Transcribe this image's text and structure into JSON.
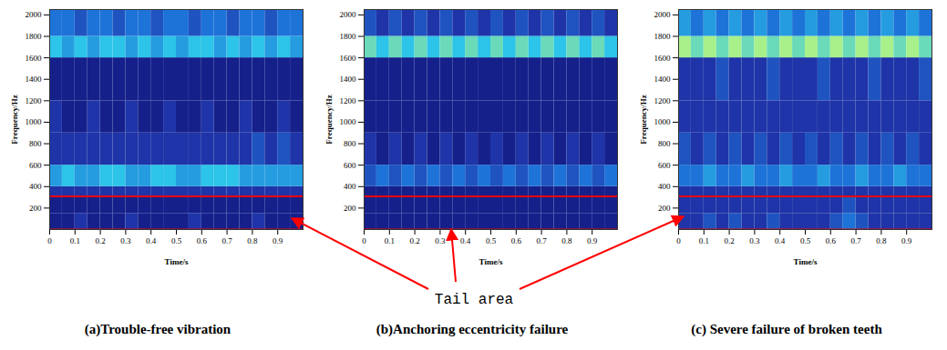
{
  "chart_data": [
    {
      "type": "heatmap",
      "title": "(a)Trouble-free vibration",
      "x_label": "Time/s",
      "y_label": "Frequency/Hz",
      "xlim": [
        0,
        1
      ],
      "ylim": [
        0,
        2050
      ],
      "xticks": [
        0,
        0.1,
        0.2,
        0.3,
        0.4,
        0.5,
        0.6,
        0.7,
        0.8,
        0.9
      ],
      "yticks": [
        200,
        400,
        600,
        800,
        1000,
        1200,
        1400,
        1600,
        1800,
        2000
      ],
      "time_edges": [
        0,
        0.05,
        0.1,
        0.15,
        0.2,
        0.25,
        0.3,
        0.35,
        0.4,
        0.45,
        0.5,
        0.55,
        0.6,
        0.65,
        0.7,
        0.75,
        0.8,
        0.85,
        0.9,
        0.95,
        1
      ],
      "frequency_edges": [
        0,
        150,
        300,
        400,
        600,
        900,
        1200,
        1600,
        1800,
        2050
      ],
      "intensity_range": [
        0,
        10
      ],
      "tail_area": [
        0,
        310
      ],
      "intensity": [
        [
          1,
          1,
          2,
          1,
          1,
          1,
          2,
          1,
          1,
          1,
          1,
          2,
          1,
          1,
          1,
          1,
          2,
          1,
          1,
          1
        ],
        [
          1,
          1,
          1,
          1,
          1,
          1,
          1,
          1,
          1,
          1,
          1,
          1,
          1,
          1,
          1,
          1,
          1,
          1,
          1,
          1
        ],
        [
          2,
          2,
          2,
          2,
          2,
          2,
          2,
          2,
          2,
          2,
          2,
          2,
          2,
          2,
          2,
          2,
          2,
          2,
          2,
          2
        ],
        [
          5,
          6,
          5,
          5,
          6,
          6,
          5,
          5,
          6,
          6,
          5,
          5,
          6,
          6,
          6,
          5,
          5,
          5,
          5,
          5
        ],
        [
          2,
          2,
          2,
          2,
          2,
          2,
          2,
          2,
          2,
          2,
          2,
          2,
          2,
          2,
          2,
          2,
          3,
          2,
          3,
          2
        ],
        [
          2,
          1,
          1,
          2,
          1,
          1,
          2,
          1,
          1,
          2,
          1,
          1,
          2,
          1,
          1,
          2,
          1,
          1,
          2,
          1
        ],
        [
          1,
          1,
          1,
          1,
          1,
          1,
          1,
          1,
          1,
          1,
          1,
          1,
          1,
          1,
          1,
          1,
          1,
          1,
          1,
          1
        ],
        [
          6,
          5,
          6,
          5,
          6,
          6,
          5,
          6,
          5,
          6,
          5,
          6,
          6,
          5,
          6,
          5,
          6,
          5,
          6,
          5
        ],
        [
          4,
          4,
          3,
          4,
          4,
          3,
          4,
          4,
          3,
          4,
          4,
          3,
          4,
          4,
          3,
          4,
          4,
          3,
          4,
          4
        ]
      ]
    },
    {
      "type": "heatmap",
      "title": "(b)Anchoring eccentricity failure",
      "x_label": "Time/s",
      "y_label": "Frequency/Hz",
      "xlim": [
        0,
        1
      ],
      "ylim": [
        0,
        2050
      ],
      "xticks": [
        0,
        0.1,
        0.2,
        0.3,
        0.4,
        0.5,
        0.6,
        0.7,
        0.8,
        0.9
      ],
      "yticks": [
        200,
        400,
        600,
        800,
        1000,
        1200,
        1400,
        1600,
        1800,
        2000
      ],
      "time_edges": [
        0,
        0.05,
        0.1,
        0.15,
        0.2,
        0.25,
        0.3,
        0.35,
        0.4,
        0.45,
        0.5,
        0.55,
        0.6,
        0.65,
        0.7,
        0.75,
        0.8,
        0.85,
        0.9,
        0.95,
        1
      ],
      "frequency_edges": [
        0,
        150,
        300,
        400,
        600,
        900,
        1200,
        1600,
        1800,
        2050
      ],
      "intensity_range": [
        0,
        10
      ],
      "tail_area": [
        0,
        310
      ],
      "intensity": [
        [
          1,
          1,
          1,
          1,
          1,
          1,
          1,
          1,
          1,
          1,
          1,
          1,
          1,
          1,
          1,
          1,
          1,
          1,
          1,
          1
        ],
        [
          1,
          1,
          1,
          1,
          1,
          1,
          1,
          1,
          1,
          1,
          1,
          1,
          1,
          1,
          1,
          1,
          1,
          1,
          1,
          1
        ],
        [
          1,
          1,
          1,
          1,
          1,
          1,
          1,
          1,
          1,
          1,
          1,
          1,
          1,
          1,
          1,
          1,
          1,
          1,
          1,
          1
        ],
        [
          3,
          4,
          3,
          4,
          3,
          4,
          3,
          4,
          3,
          4,
          3,
          4,
          3,
          4,
          3,
          4,
          3,
          4,
          3,
          4
        ],
        [
          2,
          1,
          2,
          1,
          2,
          1,
          2,
          1,
          2,
          1,
          2,
          1,
          2,
          1,
          2,
          1,
          2,
          1,
          2,
          1
        ],
        [
          1,
          1,
          1,
          1,
          1,
          1,
          1,
          1,
          1,
          1,
          1,
          1,
          1,
          1,
          1,
          1,
          1,
          1,
          1,
          1
        ],
        [
          1,
          1,
          1,
          1,
          1,
          1,
          1,
          1,
          1,
          1,
          1,
          1,
          1,
          1,
          1,
          1,
          1,
          1,
          1,
          1
        ],
        [
          7,
          6,
          7,
          6,
          7,
          6,
          7,
          6,
          7,
          6,
          7,
          6,
          7,
          6,
          7,
          6,
          7,
          6,
          7,
          6
        ],
        [
          3,
          2,
          3,
          2,
          3,
          2,
          3,
          2,
          3,
          2,
          3,
          2,
          3,
          2,
          3,
          2,
          3,
          2,
          3,
          2
        ]
      ]
    },
    {
      "type": "heatmap",
      "title": "(c) Severe failure of broken teeth",
      "x_label": "Time/s",
      "y_label": "Frequency/Hz",
      "xlim": [
        0,
        1
      ],
      "ylim": [
        0,
        2050
      ],
      "xticks": [
        0,
        0.1,
        0.2,
        0.3,
        0.4,
        0.5,
        0.6,
        0.7,
        0.8,
        0.9
      ],
      "yticks": [
        200,
        400,
        600,
        800,
        1000,
        1200,
        1400,
        1600,
        1800,
        2000
      ],
      "time_edges": [
        0,
        0.05,
        0.1,
        0.15,
        0.2,
        0.25,
        0.3,
        0.35,
        0.4,
        0.45,
        0.5,
        0.55,
        0.6,
        0.65,
        0.7,
        0.75,
        0.8,
        0.85,
        0.9,
        0.95,
        1
      ],
      "frequency_edges": [
        0,
        150,
        300,
        400,
        600,
        900,
        1200,
        1600,
        1800,
        2050
      ],
      "intensity_range": [
        0,
        10
      ],
      "tail_area": [
        0,
        310
      ],
      "intensity": [
        [
          2,
          2,
          3,
          2,
          3,
          2,
          2,
          3,
          2,
          2,
          2,
          2,
          3,
          4,
          3,
          2,
          2,
          2,
          2,
          2
        ],
        [
          2,
          2,
          2,
          2,
          2,
          2,
          2,
          2,
          2,
          2,
          2,
          2,
          2,
          3,
          2,
          2,
          2,
          2,
          2,
          2
        ],
        [
          2,
          2,
          2,
          2,
          2,
          2,
          2,
          2,
          2,
          2,
          2,
          2,
          2,
          2,
          2,
          2,
          2,
          2,
          2,
          2
        ],
        [
          4,
          4,
          5,
          4,
          4,
          5,
          4,
          4,
          5,
          4,
          4,
          5,
          4,
          4,
          5,
          4,
          4,
          5,
          4,
          4
        ],
        [
          3,
          2,
          3,
          2,
          3,
          2,
          3,
          2,
          3,
          2,
          3,
          2,
          3,
          2,
          3,
          2,
          3,
          2,
          3,
          2
        ],
        [
          2,
          2,
          2,
          2,
          2,
          2,
          2,
          2,
          2,
          2,
          2,
          2,
          2,
          2,
          2,
          2,
          2,
          2,
          2,
          2
        ],
        [
          2,
          2,
          2,
          3,
          2,
          2,
          2,
          3,
          2,
          2,
          2,
          3,
          2,
          2,
          2,
          3,
          2,
          2,
          2,
          3
        ],
        [
          8,
          7,
          8,
          7,
          8,
          7,
          8,
          7,
          8,
          7,
          8,
          7,
          8,
          7,
          8,
          7,
          8,
          7,
          8,
          7
        ],
        [
          5,
          4,
          5,
          4,
          5,
          4,
          5,
          4,
          5,
          4,
          5,
          4,
          5,
          4,
          5,
          4,
          5,
          4,
          5,
          4
        ]
      ]
    }
  ],
  "annotation": "Tail area"
}
